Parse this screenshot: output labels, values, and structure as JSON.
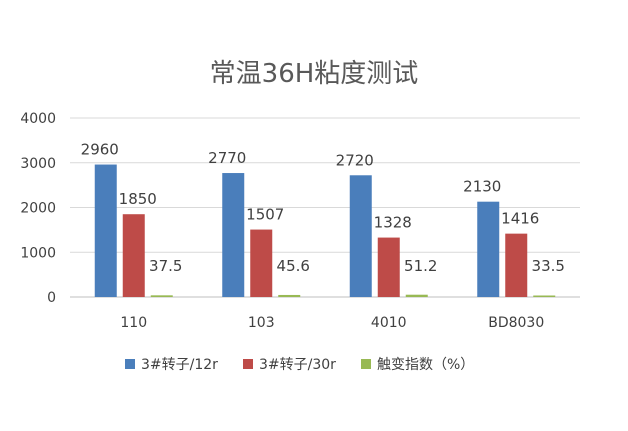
{
  "chart_data": {
    "type": "bar",
    "title": "常温36H粘度测试",
    "categories": [
      "110",
      "103",
      "4010",
      "BD8030"
    ],
    "series": [
      {
        "name": "3#转子/12r",
        "color": "#4a7ebb",
        "values": [
          2960,
          2770,
          2720,
          2130
        ],
        "labels": [
          "2960",
          "2770",
          "2720",
          "2130"
        ]
      },
      {
        "name": "3#转子/30r",
        "color": "#be4b48",
        "values": [
          1850,
          1507,
          1328,
          1416
        ],
        "labels": [
          "1850",
          "1507",
          "1328",
          "1416"
        ]
      },
      {
        "name": "触变指数（%）",
        "color": "#98b954",
        "values": [
          37.5,
          45.6,
          51.2,
          33.5
        ],
        "labels": [
          "37.5",
          "45.6",
          "51.2",
          "33.5"
        ]
      }
    ],
    "ylim": [
      0,
      4000
    ],
    "yticks": [
      "0",
      "1000",
      "2000",
      "3000",
      "4000"
    ],
    "grid": true,
    "legend": "bottom"
  }
}
